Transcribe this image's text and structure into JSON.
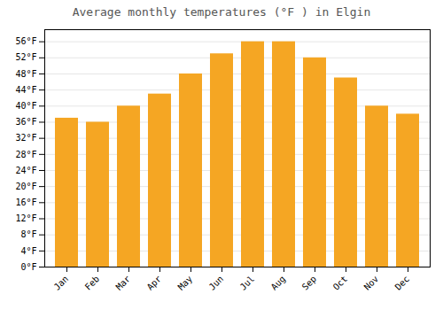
{
  "chart_data": {
    "type": "bar",
    "title": "Average monthly temperatures (°F ) in Elgin",
    "categories": [
      "Jan",
      "Feb",
      "Mar",
      "Apr",
      "May",
      "Jun",
      "Jul",
      "Aug",
      "Sep",
      "Oct",
      "Nov",
      "Dec"
    ],
    "values": [
      37,
      36,
      40,
      43,
      48,
      53,
      56,
      56,
      52,
      47,
      40,
      38
    ],
    "color": "#F5A623",
    "ylim": [
      0,
      59
    ],
    "yticks": [
      {
        "value": 0,
        "label": "0°F"
      },
      {
        "value": 4,
        "label": "4°F"
      },
      {
        "value": 8,
        "label": "8°F"
      },
      {
        "value": 12,
        "label": "12°F"
      },
      {
        "value": 16,
        "label": "16°F"
      },
      {
        "value": 20,
        "label": "20°F"
      },
      {
        "value": 24,
        "label": "24°F"
      },
      {
        "value": 28,
        "label": "28°F"
      },
      {
        "value": 32,
        "label": "32°F"
      },
      {
        "value": 36,
        "label": "36°F"
      },
      {
        "value": 40,
        "label": "40°F"
      },
      {
        "value": 44,
        "label": "44°F"
      },
      {
        "value": 48,
        "label": "48°F"
      },
      {
        "value": 52,
        "label": "52°F"
      },
      {
        "value": 56,
        "label": "56°F"
      }
    ],
    "grid": true
  }
}
